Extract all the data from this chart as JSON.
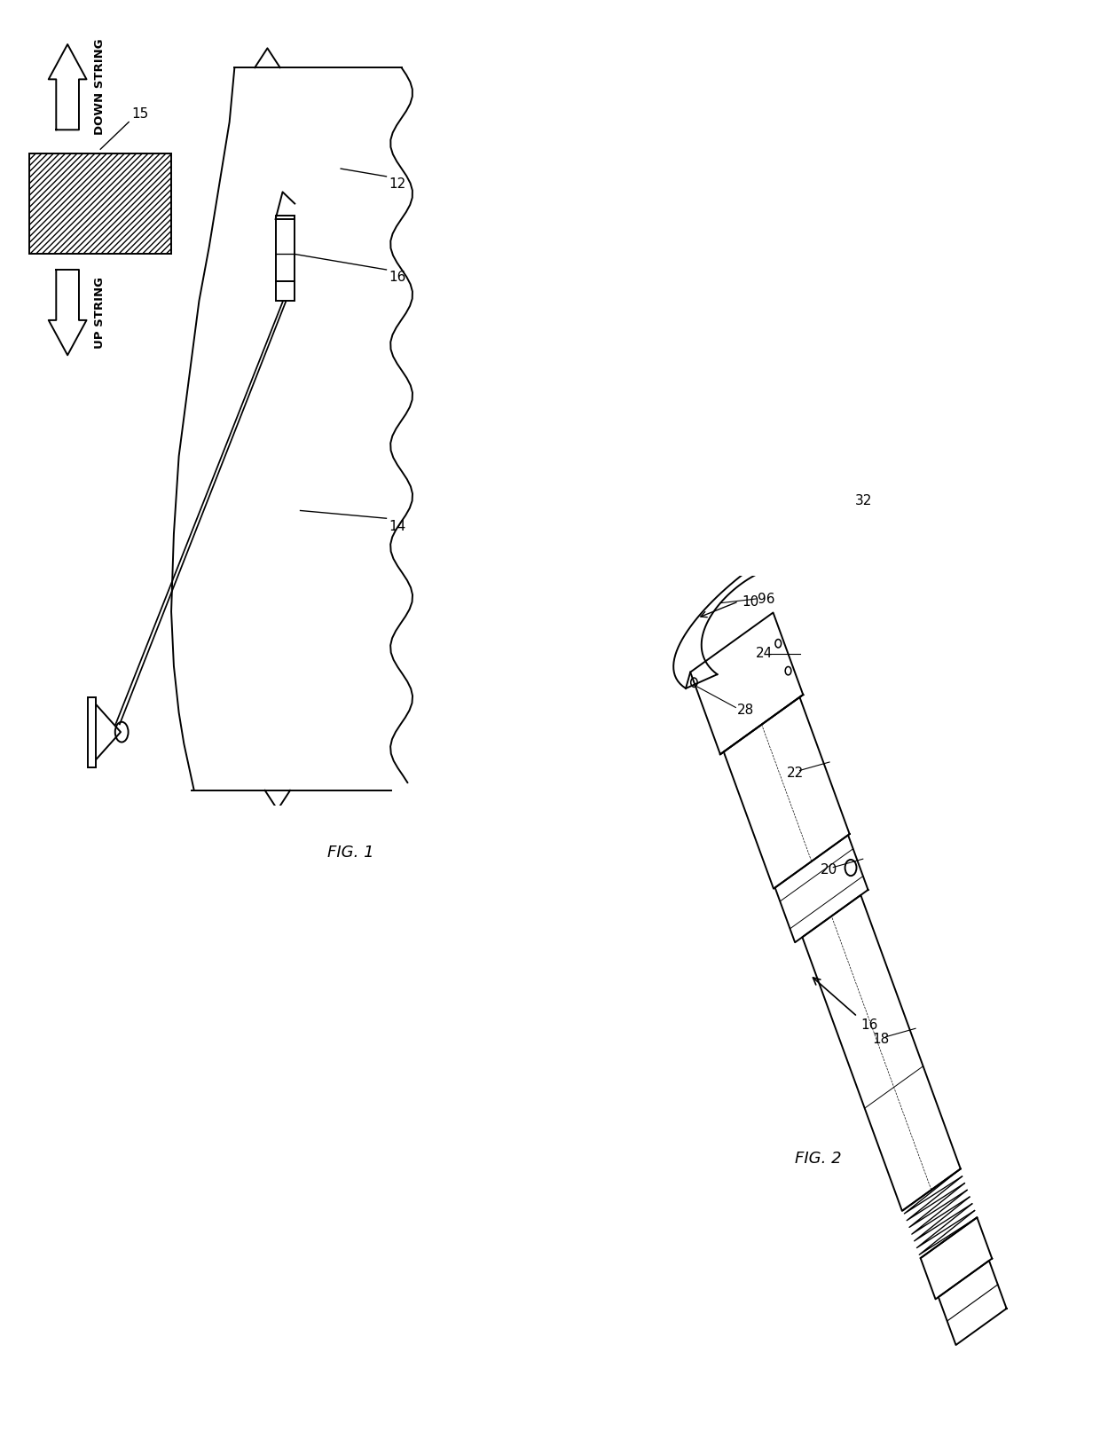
{
  "fig_width": 12.4,
  "fig_height": 16.22,
  "bg_color": "#ffffff",
  "line_color": "#000000",
  "labels": {
    "fig1": "FIG. 1",
    "fig2": "FIG. 2",
    "down_string": "DOWN STRING",
    "up_string": "UP STRING",
    "ref_10": "10",
    "ref_12": "12",
    "ref_14": "14",
    "ref_15": "15",
    "ref_16_fig1": "16",
    "ref_16_fig2": "16",
    "ref_18": "18",
    "ref_20": "20",
    "ref_22": "22",
    "ref_24": "24",
    "ref_28": "28",
    "ref_32": "32",
    "ref_96": "96"
  }
}
